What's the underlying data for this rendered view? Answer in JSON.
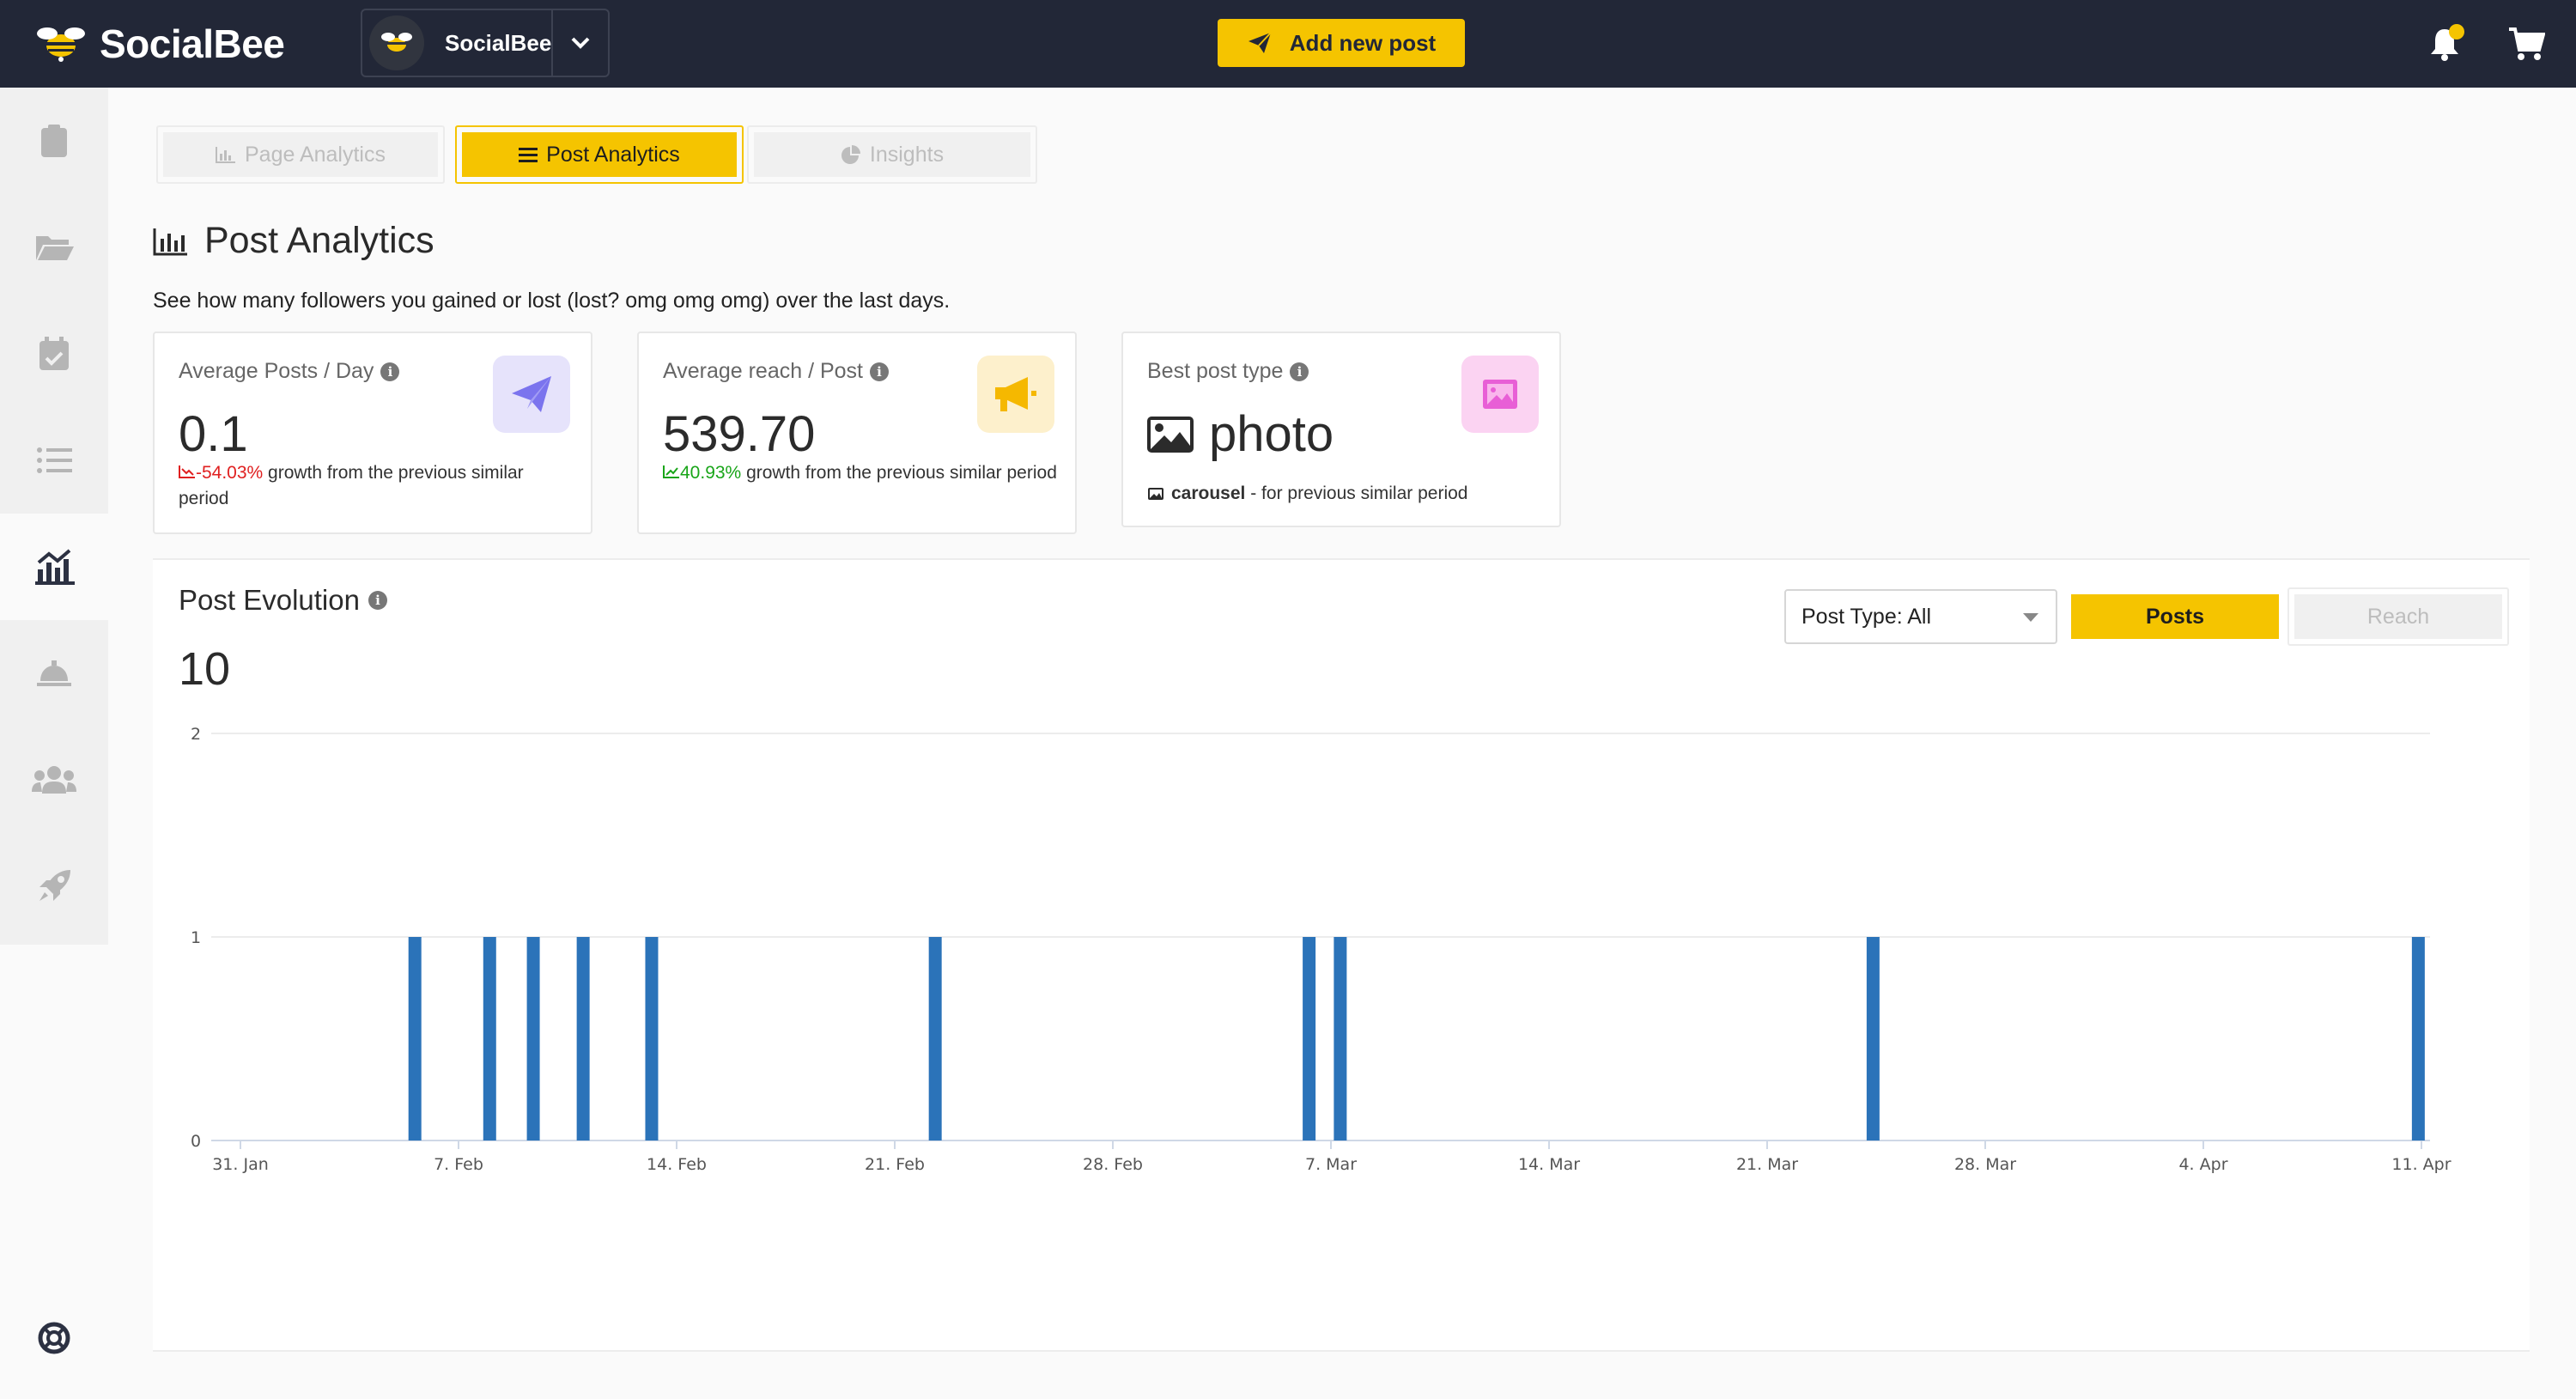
{
  "topbar": {
    "brand": "SocialBee",
    "account_name": "SocialBee",
    "add_post_label": "Add new post"
  },
  "sidebar": {
    "items": [
      {
        "icon": "clipboard-icon"
      },
      {
        "icon": "folder-icon"
      },
      {
        "icon": "calendar-icon"
      },
      {
        "icon": "list-icon"
      },
      {
        "icon": "analytics-icon",
        "active": true
      },
      {
        "icon": "concierge-bell-icon"
      },
      {
        "icon": "users-icon"
      },
      {
        "icon": "rocket-icon"
      }
    ],
    "help_icon": "lifebuoy-icon"
  },
  "tabs": [
    {
      "label": "Page Analytics",
      "active": false
    },
    {
      "label": "Post Analytics",
      "active": true
    },
    {
      "label": "Insights",
      "active": false
    }
  ],
  "page": {
    "title": "Post Analytics",
    "description": "See how many followers you gained or lost (lost? omg omg omg) over the last days."
  },
  "cards": [
    {
      "label": "Average Posts / Day",
      "value": "0.1",
      "growth_pct": "-54.03%",
      "growth_text": " growth from the previous similar period",
      "trend": "down",
      "icon": "paper-plane-icon",
      "icon_color": "#7b74ee"
    },
    {
      "label": "Average reach / Post",
      "value": "539.70",
      "growth_pct": "40.93%",
      "growth_text": " growth from the previous similar period",
      "trend": "up",
      "icon": "megaphone-icon",
      "icon_color": "#f5b800"
    },
    {
      "label": "Best post type",
      "value": "photo",
      "sub_strong": "carousel",
      "sub_text": " - for previous similar period",
      "icon": "image-icon",
      "icon_color": "#e85fd6"
    }
  ],
  "evolution": {
    "title": "Post Evolution",
    "total": "10",
    "post_type_select": "Post Type: All",
    "toggle": [
      {
        "label": "Posts",
        "active": true
      },
      {
        "label": "Reach",
        "active": false
      }
    ]
  },
  "chart_data": {
    "type": "bar",
    "title": "Post Evolution",
    "ylim": [
      0,
      2
    ],
    "yticks": [
      0,
      1,
      2
    ],
    "x_tick_labels": [
      "31. Jan",
      "7. Feb",
      "14. Feb",
      "21. Feb",
      "28. Feb",
      "7. Mar",
      "14. Mar",
      "21. Mar",
      "28. Mar",
      "4. Apr",
      "11. Apr"
    ],
    "x_range_days": [
      0,
      70
    ],
    "series": [
      {
        "color": "#2b73b9",
        "points": [
          {
            "day": 5.6,
            "value": 1
          },
          {
            "day": 8.0,
            "value": 1
          },
          {
            "day": 9.4,
            "value": 1
          },
          {
            "day": 11.0,
            "value": 1
          },
          {
            "day": 13.2,
            "value": 1
          },
          {
            "day": 22.3,
            "value": 1
          },
          {
            "day": 34.3,
            "value": 1
          },
          {
            "day": 35.3,
            "value": 1
          },
          {
            "day": 52.4,
            "value": 1
          },
          {
            "day": 69.9,
            "value": 1
          }
        ]
      }
    ],
    "grid": true,
    "legend": "none"
  }
}
